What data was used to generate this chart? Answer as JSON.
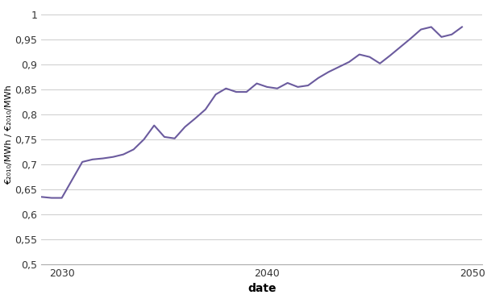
{
  "x": [
    2029.0,
    2029.5,
    2030.0,
    2031.0,
    2031.5,
    2032.0,
    2032.5,
    2033.0,
    2033.5,
    2034.0,
    2034.5,
    2035.0,
    2035.5,
    2036.0,
    2036.5,
    2037.0,
    2037.5,
    2038.0,
    2038.5,
    2039.0,
    2039.5,
    2040.0,
    2040.5,
    2041.0,
    2041.5,
    2042.0,
    2042.5,
    2043.0,
    2043.5,
    2044.0,
    2044.5,
    2045.0,
    2045.5,
    2046.0,
    2046.5,
    2047.0,
    2047.5,
    2048.0,
    2048.5,
    2049.0,
    2049.5
  ],
  "y": [
    0.635,
    0.633,
    0.633,
    0.705,
    0.71,
    0.712,
    0.715,
    0.72,
    0.73,
    0.75,
    0.778,
    0.755,
    0.752,
    0.775,
    0.792,
    0.81,
    0.84,
    0.852,
    0.845,
    0.845,
    0.862,
    0.855,
    0.852,
    0.863,
    0.855,
    0.858,
    0.873,
    0.885,
    0.895,
    0.905,
    0.92,
    0.915,
    0.902,
    0.918,
    0.935,
    0.952,
    0.97,
    0.975,
    0.955,
    0.96,
    0.975
  ],
  "line_color": "#6b5b9e",
  "line_width": 1.5,
  "xlabel": "date",
  "ylabel": "€₂₀₁₀/MWh / €₂₀₁₀/MWh",
  "xlim": [
    2029.0,
    2050.5
  ],
  "ylim": [
    0.5,
    1.02
  ],
  "yticks": [
    0.5,
    0.55,
    0.6,
    0.65,
    0.7,
    0.75,
    0.8,
    0.85,
    0.9,
    0.95,
    1.0
  ],
  "ytick_labels": [
    "0,5",
    "0,55",
    "0,6",
    "0,65",
    "0,7",
    "0,75",
    "0,8",
    "0,85",
    "0,9",
    "0,95",
    "1"
  ],
  "xticks": [
    2030,
    2040,
    2050
  ],
  "xtick_labels": [
    "2030",
    "2040",
    "2050"
  ],
  "background_color": "#ffffff",
  "grid_color": "#cccccc",
  "xlabel_fontsize": 10,
  "ylabel_fontsize": 8,
  "tick_fontsize": 9
}
